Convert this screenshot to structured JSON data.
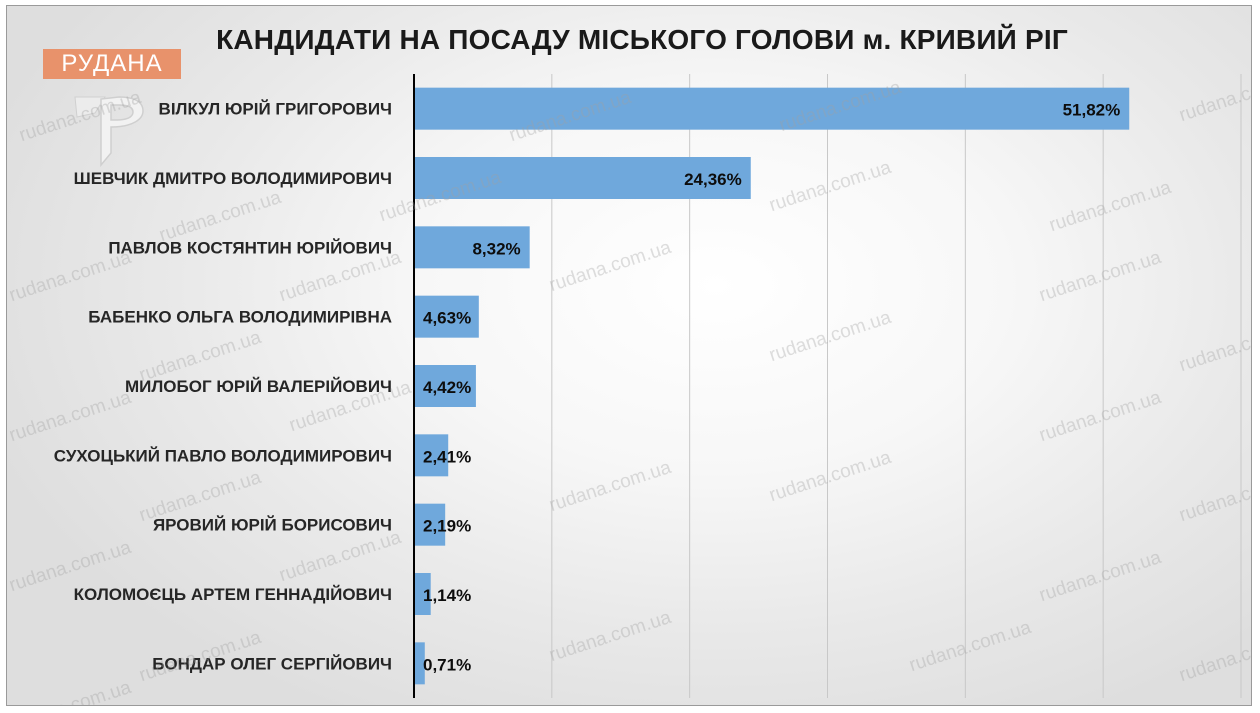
{
  "brand": {
    "name": "РУДАНА",
    "watermark": "rudana.com.ua",
    "color": "#e8926b"
  },
  "colors": {
    "bar": "#6fa8dc",
    "grid": "#c8c8c8",
    "axis": "#000000"
  },
  "chart_data": {
    "type": "bar",
    "orientation": "horizontal",
    "title": "КАНДИДАТИ НА ПОСАДУ МІСЬКОГО ГОЛОВИ м. КРИВИЙ РІГ",
    "categories": [
      "ВІЛКУЛ ЮРІЙ ГРИГОРОВИЧ",
      "ШЕВЧИК ДМИТРО ВОЛОДИМИРОВИЧ",
      "ПАВЛОВ КОСТЯНТИН ЮРІЙОВИЧ",
      "БАБЕНКО ОЛЬГА ВОЛОДИМИРІВНА",
      "МИЛОБОГ ЮРІЙ ВАЛЕРІЙОВИЧ",
      "СУХОЦЬКИЙ ПАВЛО ВОЛОДИМИРОВИЧ",
      "ЯРОВИЙ ЮРІЙ БОРИСОВИЧ",
      "КОЛОМОЄЦЬ АРТЕМ ГЕННАДІЙОВИЧ",
      "БОНДАР ОЛЕГ СЕРГІЙОВИЧ"
    ],
    "values": [
      51.82,
      24.36,
      8.32,
      4.63,
      4.42,
      2.41,
      2.19,
      1.14,
      0.71
    ],
    "data_labels": [
      "51,82%",
      "24,36%",
      "8,32%",
      "4,63%",
      "4,42%",
      "2,41%",
      "2,19%",
      "1,14%",
      "0,71%"
    ],
    "xlim": [
      0,
      60
    ],
    "x_gridlines": [
      10,
      20,
      30,
      40,
      50,
      60
    ],
    "grid": true,
    "legend": false
  }
}
